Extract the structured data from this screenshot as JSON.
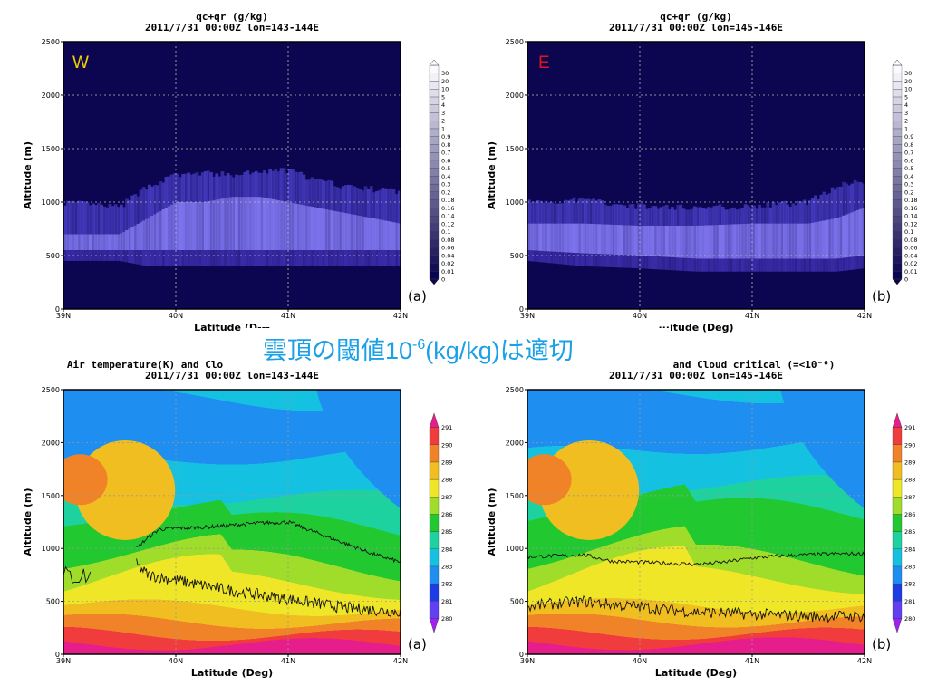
{
  "banner": {
    "main": "雲頂の閾値10",
    "exponent": "-6",
    "rest": "(kg/kg)は適切"
  },
  "x_ticks": [
    "39N",
    "40N",
    "41N",
    "42N"
  ],
  "y_ticks": [
    "0",
    "500",
    "1000",
    "1500",
    "2000",
    "2500"
  ],
  "panels": [
    {
      "id": "top-left",
      "title1": "qc+qr (g/kg)",
      "title2": "2011/7/31 00:00Z lon=143-144E",
      "xlabel": "Latitude (D---",
      "ylabel": "Altitude (m)",
      "label": "(a)",
      "corner": "W",
      "corner_color": "#f5d000"
    },
    {
      "id": "top-right",
      "title1": "qc+qr (g/kg)",
      "title2": "2011/7/31 00:00Z lon=145-146E",
      "xlabel": "···itude (Deg)",
      "ylabel": "Altitude (m)",
      "label": "(b)",
      "corner": "E",
      "corner_color": "#e0141e"
    },
    {
      "id": "bottom-left",
      "title1": "Air temperature(K) and Clo",
      "title2": "2011/7/31 00:00Z lon=143-144E",
      "xlabel": "Latitude (Deg)",
      "ylabel": "Altitude (m)",
      "label": "(a)"
    },
    {
      "id": "bottom-right",
      "title1": "and Cloud critical (=<10⁻⁶)",
      "title2": "2011/7/31 00:00Z lon=145-146E",
      "xlabel": "Latitude (Deg)",
      "ylabel": "Altitude (m)",
      "label": "(b)"
    }
  ],
  "chart_data": [
    {
      "type": "heatmap",
      "title": "qc+qr (g/kg)",
      "subtitle": "2011/7/31 00:00Z lon=143-144E",
      "xlabel": "Latitude (D---",
      "ylabel": "Altitude (m)",
      "xlim": [
        39,
        42
      ],
      "ylim": [
        0,
        2500
      ],
      "colorbar_levels": [
        "0",
        "0.01",
        "0.02",
        "0.04",
        "0.06",
        "0.08",
        "0.1",
        "0.12",
        "0.14",
        "0.16",
        "0.18",
        "0.2",
        "0.3",
        "0.4",
        "0.5",
        "0.6",
        "0.7",
        "0.8",
        "0.9",
        "1",
        "2",
        "3",
        "4",
        "5",
        "10",
        "20",
        "30"
      ],
      "series": [
        {
          "x": [
            39.0,
            39.5,
            39.75,
            40.0,
            40.25,
            40.5,
            40.75,
            41.0,
            41.25,
            41.5,
            41.75,
            42.0
          ],
          "bottom": [
            450,
            450,
            400,
            400,
            400,
            400,
            400,
            400,
            400,
            400,
            400,
            400
          ],
          "core_low": [
            550,
            550,
            550,
            550,
            550,
            550,
            550,
            550,
            550,
            550,
            550,
            550
          ],
          "core_high": [
            700,
            700,
            850,
            1000,
            1000,
            1050,
            1050,
            1000,
            950,
            900,
            850,
            800
          ],
          "top": [
            1000,
            950,
            1150,
            1250,
            1270,
            1250,
            1280,
            1300,
            1200,
            1150,
            1120,
            1100
          ]
        }
      ],
      "grid": true
    },
    {
      "type": "heatmap",
      "title": "qc+qr (g/kg)",
      "subtitle": "2011/7/31 00:00Z lon=145-146E",
      "xlabel": "···itude (Deg)",
      "ylabel": "Altitude (m)",
      "xlim": [
        39,
        42
      ],
      "ylim": [
        0,
        2500
      ],
      "colorbar_levels": [
        "0",
        "0.01",
        "0.02",
        "0.04",
        "0.06",
        "0.08",
        "0.1",
        "0.12",
        "0.14",
        "0.16",
        "0.18",
        "0.2",
        "0.3",
        "0.4",
        "0.5",
        "0.6",
        "0.7",
        "0.8",
        "0.9",
        "1",
        "2",
        "3",
        "4",
        "5",
        "10",
        "20",
        "30"
      ],
      "series": [
        {
          "x": [
            39.0,
            39.5,
            40.0,
            40.5,
            41.0,
            41.5,
            41.75,
            42.0
          ],
          "bottom": [
            450,
            400,
            380,
            350,
            350,
            350,
            350,
            380
          ],
          "core_low": [
            550,
            520,
            500,
            470,
            470,
            470,
            470,
            500
          ],
          "core_high": [
            800,
            800,
            780,
            780,
            800,
            800,
            850,
            950
          ],
          "top": [
            1000,
            1020,
            960,
            950,
            960,
            1000,
            1150,
            1200
          ]
        }
      ],
      "grid": true
    },
    {
      "type": "heatmap",
      "title": "Air temperature(K) and Clo",
      "subtitle": "2011/7/31 00:00Z lon=143-144E",
      "xlabel": "Latitude (Deg)",
      "ylabel": "Altitude (m)",
      "xlim": [
        39,
        42
      ],
      "ylim": [
        0,
        2500
      ],
      "colorbar_levels": [
        "280",
        "281",
        "282",
        "283",
        "284",
        "285",
        "286",
        "287",
        "288",
        "289",
        "290",
        "291"
      ],
      "colors": [
        "#a020f0",
        "#6040f0",
        "#1e3ce6",
        "#1e8ef0",
        "#15c1e0",
        "#1ed2a0",
        "#22c830",
        "#a0dc2a",
        "#f0e628",
        "#f0be20",
        "#f08228",
        "#f03c3c",
        "#e61e8c"
      ],
      "series": [
        {
          "name": "cloud_top",
          "x": [
            39.65,
            39.75,
            39.85,
            40.0,
            40.25,
            40.5,
            40.75,
            41.0,
            41.25,
            41.5,
            41.75,
            42.0
          ],
          "y": [
            1000,
            1100,
            1180,
            1190,
            1200,
            1220,
            1240,
            1250,
            1150,
            1050,
            950,
            870
          ]
        },
        {
          "name": "cloud_base",
          "x": [
            39.65,
            39.75,
            40.0,
            40.25,
            40.5,
            40.75,
            41.0,
            41.25,
            41.5,
            41.75,
            42.0
          ],
          "y": [
            850,
            750,
            700,
            650,
            600,
            560,
            520,
            480,
            440,
            420,
            400
          ]
        }
      ],
      "grid": true
    },
    {
      "type": "heatmap",
      "title": "and Cloud critical (=<10⁻⁶)",
      "subtitle": "2011/7/31 00:00Z lon=145-146E",
      "xlabel": "Latitude (Deg)",
      "ylabel": "Altitude (m)",
      "xlim": [
        39,
        42
      ],
      "ylim": [
        0,
        2500
      ],
      "colorbar_levels": [
        "280",
        "281",
        "282",
        "283",
        "284",
        "285",
        "286",
        "287",
        "288",
        "289",
        "290",
        "291"
      ],
      "colors": [
        "#a020f0",
        "#6040f0",
        "#1e3ce6",
        "#1e8ef0",
        "#15c1e0",
        "#1ed2a0",
        "#22c830",
        "#a0dc2a",
        "#f0e628",
        "#f0be20",
        "#f08228",
        "#f03c3c",
        "#e61e8c"
      ],
      "series": [
        {
          "name": "cloud_top",
          "x": [
            39.0,
            39.25,
            39.5,
            39.75,
            40.0,
            40.25,
            40.5,
            40.75,
            41.0,
            41.25,
            41.5,
            41.75,
            42.0
          ],
          "y": [
            920,
            930,
            940,
            880,
            870,
            860,
            850,
            870,
            910,
            930,
            940,
            950,
            950
          ]
        },
        {
          "name": "cloud_base",
          "x": [
            39.0,
            39.25,
            39.5,
            39.75,
            40.0,
            40.25,
            40.5,
            40.75,
            41.0,
            41.25,
            41.5,
            41.75,
            42.0
          ],
          "y": [
            450,
            480,
            500,
            470,
            450,
            420,
            400,
            390,
            380,
            370,
            360,
            360,
            360
          ]
        }
      ],
      "grid": true
    }
  ]
}
